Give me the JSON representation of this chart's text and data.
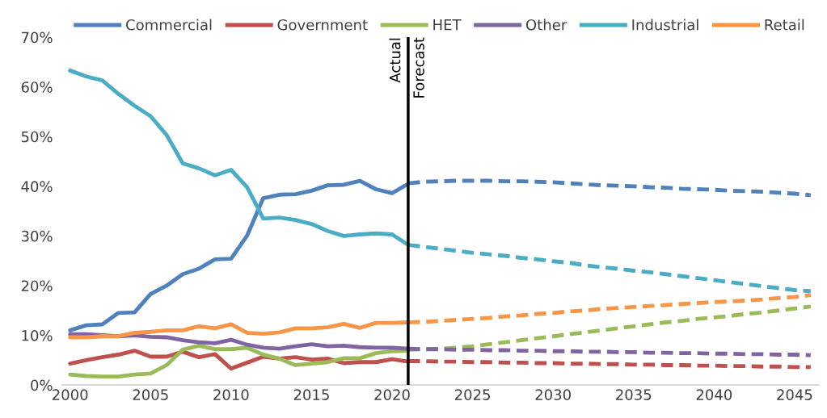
{
  "chart_data": {
    "type": "line",
    "x": [
      2000,
      2001,
      2002,
      2003,
      2004,
      2005,
      2006,
      2007,
      2008,
      2009,
      2010,
      2011,
      2012,
      2013,
      2014,
      2015,
      2016,
      2017,
      2018,
      2019,
      2020,
      2021
    ],
    "series": [
      {
        "name": "Commercial",
        "color": "#4f81bd",
        "line_style": "solid",
        "values": [
          11.0,
          12.0,
          12.2,
          14.5,
          14.6,
          18.3,
          20.0,
          22.3,
          23.4,
          25.3,
          25.4,
          30.1,
          37.6,
          38.3,
          38.4,
          39.1,
          40.2,
          40.3,
          41.1,
          39.4,
          38.6,
          40.5
        ]
      },
      {
        "name": "Government",
        "color": "#c0504d",
        "line_style": "solid",
        "values": [
          4.3,
          5.0,
          5.6,
          6.1,
          6.9,
          5.7,
          5.7,
          6.7,
          5.6,
          6.2,
          3.3,
          4.5,
          5.7,
          5.3,
          5.6,
          5.1,
          5.3,
          4.4,
          4.6,
          4.6,
          5.2,
          4.7
        ]
      },
      {
        "name": "HET",
        "color": "#9bbb59",
        "line_style": "solid",
        "values": [
          2.1,
          1.8,
          1.7,
          1.7,
          2.1,
          2.3,
          4.0,
          7.1,
          7.9,
          7.2,
          7.2,
          7.5,
          6.1,
          5.3,
          4.0,
          4.3,
          4.6,
          5.4,
          5.4,
          6.4,
          6.8,
          6.9
        ]
      },
      {
        "name": "Other",
        "color": "#8064a2",
        "line_style": "solid",
        "values": [
          10.2,
          10.2,
          10.0,
          9.8,
          10.0,
          9.7,
          9.6,
          9.0,
          8.6,
          8.4,
          9.1,
          8.1,
          7.5,
          7.3,
          7.8,
          8.2,
          7.8,
          7.9,
          7.6,
          7.5,
          7.5,
          7.3
        ]
      },
      {
        "name": "Industrial",
        "color": "#4bacc6",
        "line_style": "solid",
        "values": [
          63.3,
          62.1,
          61.3,
          58.6,
          56.2,
          54.1,
          50.3,
          44.6,
          43.6,
          42.2,
          43.3,
          39.8,
          33.5,
          33.7,
          33.2,
          32.4,
          31.0,
          30.0,
          30.3,
          30.5,
          30.3,
          28.2
        ]
      },
      {
        "name": "Retail",
        "color": "#f79646",
        "line_style": "solid",
        "values": [
          9.6,
          9.6,
          9.8,
          9.8,
          10.5,
          10.7,
          11.0,
          11.0,
          11.8,
          11.4,
          12.2,
          10.5,
          10.3,
          10.6,
          11.4,
          11.4,
          11.6,
          12.3,
          11.5,
          12.5,
          12.5,
          12.6
        ]
      },
      {
        "color": "#4f81bd",
        "line_style": "dashed",
        "x": [
          2021,
          2022,
          2023,
          2024,
          2025,
          2026,
          2027,
          2028,
          2029,
          2030,
          2031,
          2032,
          2033,
          2034,
          2035,
          2036,
          2037,
          2038,
          2039,
          2040,
          2041,
          2042,
          2043,
          2044,
          2045,
          2046
        ],
        "values": [
          40.6,
          40.9,
          41.0,
          41.1,
          41.1,
          41.1,
          41.0,
          41.0,
          40.9,
          40.8,
          40.6,
          40.4,
          40.2,
          40.1,
          40.0,
          39.8,
          39.7,
          39.5,
          39.4,
          39.3,
          39.1,
          39.0,
          38.9,
          38.7,
          38.5,
          38.2
        ]
      },
      {
        "color": "#c0504d",
        "line_style": "dashed",
        "x": [
          2021,
          2022,
          2023,
          2024,
          2025,
          2026,
          2027,
          2028,
          2029,
          2030,
          2031,
          2032,
          2033,
          2034,
          2035,
          2036,
          2037,
          2038,
          2039,
          2040,
          2041,
          2042,
          2043,
          2044,
          2045,
          2046
        ],
        "values": [
          4.8,
          4.8,
          4.7,
          4.7,
          4.6,
          4.6,
          4.5,
          4.5,
          4.4,
          4.4,
          4.3,
          4.3,
          4.2,
          4.2,
          4.1,
          4.1,
          4.0,
          4.0,
          3.9,
          3.9,
          3.8,
          3.8,
          3.7,
          3.7,
          3.6,
          3.6
        ]
      },
      {
        "color": "#9bbb59",
        "line_style": "dashed",
        "x": [
          2021,
          2022,
          2023,
          2024,
          2025,
          2026,
          2027,
          2028,
          2029,
          2030,
          2031,
          2032,
          2033,
          2034,
          2035,
          2036,
          2037,
          2038,
          2039,
          2040,
          2041,
          2042,
          2043,
          2044,
          2045,
          2046
        ],
        "values": [
          7.1,
          7.2,
          7.3,
          7.5,
          7.8,
          8.2,
          8.6,
          9.0,
          9.4,
          9.8,
          10.2,
          10.6,
          11.0,
          11.4,
          11.8,
          12.2,
          12.6,
          12.9,
          13.3,
          13.6,
          13.9,
          14.3,
          14.6,
          15.0,
          15.4,
          15.8
        ]
      },
      {
        "color": "#8064a2",
        "line_style": "dashed",
        "x": [
          2021,
          2022,
          2023,
          2024,
          2025,
          2026,
          2027,
          2028,
          2029,
          2030,
          2031,
          2032,
          2033,
          2034,
          2035,
          2036,
          2037,
          2038,
          2039,
          2040,
          2041,
          2042,
          2043,
          2044,
          2045,
          2046
        ],
        "values": [
          7.3,
          7.2,
          7.2,
          7.1,
          7.1,
          7.0,
          7.0,
          6.9,
          6.9,
          6.8,
          6.8,
          6.7,
          6.7,
          6.6,
          6.6,
          6.5,
          6.5,
          6.4,
          6.4,
          6.3,
          6.3,
          6.2,
          6.2,
          6.1,
          6.1,
          6.0
        ]
      },
      {
        "color": "#4bacc6",
        "line_style": "dashed",
        "x": [
          2021,
          2022,
          2023,
          2024,
          2025,
          2026,
          2027,
          2028,
          2029,
          2030,
          2031,
          2032,
          2033,
          2034,
          2035,
          2036,
          2037,
          2038,
          2039,
          2040,
          2041,
          2042,
          2043,
          2044,
          2045,
          2046
        ],
        "values": [
          28.2,
          27.8,
          27.4,
          27.0,
          26.6,
          26.3,
          26.0,
          25.6,
          25.3,
          24.9,
          24.6,
          24.1,
          23.7,
          23.4,
          23.0,
          22.7,
          22.3,
          21.9,
          21.5,
          21.1,
          20.7,
          20.3,
          19.9,
          19.5,
          19.1,
          18.9
        ]
      },
      {
        "color": "#f79646",
        "line_style": "dashed",
        "x": [
          2021,
          2022,
          2023,
          2024,
          2025,
          2026,
          2027,
          2028,
          2029,
          2030,
          2031,
          2032,
          2033,
          2034,
          2035,
          2036,
          2037,
          2038,
          2039,
          2040,
          2041,
          2042,
          2043,
          2044,
          2045,
          2046
        ],
        "values": [
          12.6,
          12.7,
          12.9,
          13.1,
          13.3,
          13.5,
          13.8,
          14.0,
          14.3,
          14.5,
          14.8,
          15.0,
          15.3,
          15.5,
          15.7,
          15.9,
          16.1,
          16.3,
          16.5,
          16.7,
          16.8,
          17.0,
          17.2,
          17.5,
          17.7,
          18.1
        ]
      }
    ],
    "xlim": [
      1999.5,
      2046.5
    ],
    "xticks": [
      2000,
      2005,
      2010,
      2015,
      2020,
      2025,
      2030,
      2035,
      2040,
      2045
    ],
    "ylim": [
      0,
      70
    ],
    "yticks": [
      {
        "value": 0,
        "label": "0%"
      },
      {
        "value": 10,
        "label": "10%"
      },
      {
        "value": 20,
        "label": "20%"
      },
      {
        "value": 30,
        "label": "30%"
      },
      {
        "value": 40,
        "label": "40%"
      },
      {
        "value": 50,
        "label": "50%"
      },
      {
        "value": 60,
        "label": "60%"
      },
      {
        "value": 70,
        "label": "70%"
      }
    ],
    "ref_lines": [
      {
        "axis": "x",
        "value": 2021,
        "label": "Actual",
        "color": "#000000"
      }
    ],
    "annotations": [
      {
        "text": "Forecast",
        "x": 2021,
        "y": 70
      }
    ],
    "legend": "top",
    "grid": false,
    "marker": "none"
  }
}
